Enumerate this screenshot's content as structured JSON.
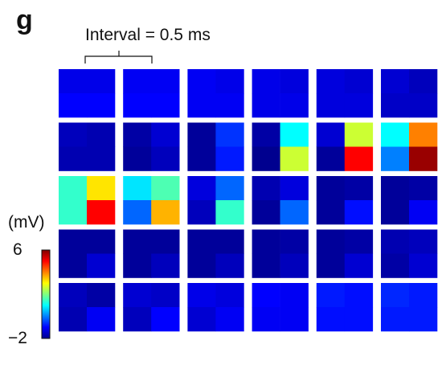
{
  "panel_label": "g",
  "scale_bar_label": "Interval = 0.5 ms",
  "colorbar": {
    "unit": "(mV)",
    "max_label": "6",
    "min_label": "−2",
    "min": -2,
    "max": 6,
    "colormap": "jet"
  },
  "chart_data": {
    "type": "heatmap",
    "description_grid": "5 rows x 6 columns of frames, each frame a 2x2 electrode map; frames advance in time left-to-right, top-to-bottom",
    "title": "",
    "frame_interval_ms": 0.5,
    "value_range": [
      -2,
      6
    ],
    "frames": [
      [
        [
          -1.2,
          -1.2
        ],
        [
          -1.0,
          -1.0
        ]
      ],
      [
        [
          -1.1,
          -1.1
        ],
        [
          -1.0,
          -1.0
        ]
      ],
      [
        [
          -1.1,
          -1.2
        ],
        [
          -1.1,
          -1.1
        ]
      ],
      [
        [
          -1.2,
          -1.3
        ],
        [
          -1.2,
          -1.2
        ]
      ],
      [
        [
          -1.3,
          -1.4
        ],
        [
          -1.3,
          -1.3
        ]
      ],
      [
        [
          -1.4,
          -1.6
        ],
        [
          -1.5,
          -1.5
        ]
      ],
      [
        [
          -1.6,
          -1.7
        ],
        [
          -1.7,
          -1.7
        ]
      ],
      [
        [
          -1.8,
          -1.4
        ],
        [
          -1.9,
          -1.6
        ]
      ],
      [
        [
          -1.9,
          -0.6
        ],
        [
          -1.9,
          -0.8
        ]
      ],
      [
        [
          -1.8,
          1.0
        ],
        [
          -2.0,
          2.6
        ]
      ],
      [
        [
          -1.4,
          2.6
        ],
        [
          -1.9,
          5.0
        ]
      ],
      [
        [
          1.0,
          4.0
        ],
        [
          0.0,
          5.8
        ]
      ],
      [
        [
          1.4,
          3.2
        ],
        [
          1.4,
          5.0
        ]
      ],
      [
        [
          0.8,
          1.6
        ],
        [
          -0.2,
          3.6
        ]
      ],
      [
        [
          -1.3,
          -0.2
        ],
        [
          -1.6,
          1.4
        ]
      ],
      [
        [
          -1.7,
          -1.3
        ],
        [
          -1.9,
          -0.2
        ]
      ],
      [
        [
          -1.9,
          -1.8
        ],
        [
          -1.9,
          -0.9
        ]
      ],
      [
        [
          -1.9,
          -1.8
        ],
        [
          -1.9,
          -1.1
        ]
      ],
      [
        [
          -1.9,
          -1.9
        ],
        [
          -1.9,
          -1.4
        ]
      ],
      [
        [
          -1.9,
          -1.9
        ],
        [
          -1.9,
          -1.6
        ]
      ],
      [
        [
          -1.9,
          -1.9
        ],
        [
          -1.9,
          -1.6
        ]
      ],
      [
        [
          -1.9,
          -1.8
        ],
        [
          -1.9,
          -1.6
        ]
      ],
      [
        [
          -1.9,
          -1.8
        ],
        [
          -1.9,
          -1.4
        ]
      ],
      [
        [
          -1.7,
          -1.6
        ],
        [
          -1.8,
          -1.4
        ]
      ],
      [
        [
          -1.6,
          -1.8
        ],
        [
          -1.7,
          -1.1
        ]
      ],
      [
        [
          -1.4,
          -1.5
        ],
        [
          -1.6,
          -1.0
        ]
      ],
      [
        [
          -1.2,
          -1.3
        ],
        [
          -1.4,
          -1.1
        ]
      ],
      [
        [
          -1.0,
          -1.1
        ],
        [
          -1.1,
          -1.1
        ]
      ],
      [
        [
          -0.8,
          -0.9
        ],
        [
          -0.9,
          -0.9
        ]
      ],
      [
        [
          -0.7,
          -0.8
        ],
        [
          -0.8,
          -0.8
        ]
      ]
    ]
  }
}
